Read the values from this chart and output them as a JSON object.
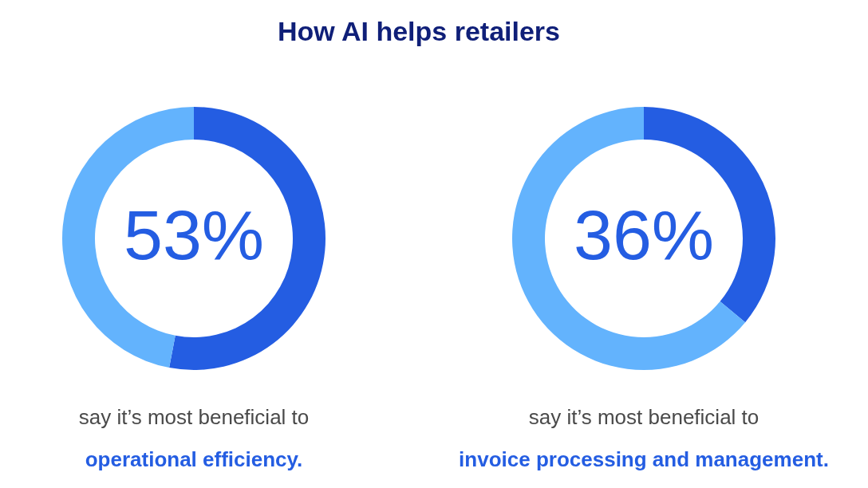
{
  "chart_data": [
    {
      "type": "donut",
      "title": "How AI helps retailers",
      "categories": [
        null,
        null
      ],
      "values": [
        53,
        47
      ],
      "colors": [
        "#245de2",
        "#63b3fd"
      ],
      "value_labels": [
        "53%",
        null
      ],
      "annotations": [
        "say it’s most beneficial to",
        "operational efficiency."
      ]
    },
    {
      "type": "donut",
      "categories": [
        null,
        null
      ],
      "values": [
        36,
        64
      ],
      "colors": [
        "#245de2",
        "#63b3fd"
      ],
      "value_labels": [
        "36%",
        null
      ],
      "annotations": [
        "say it’s most beneficial to",
        "invoice processing and management."
      ]
    }
  ]
}
